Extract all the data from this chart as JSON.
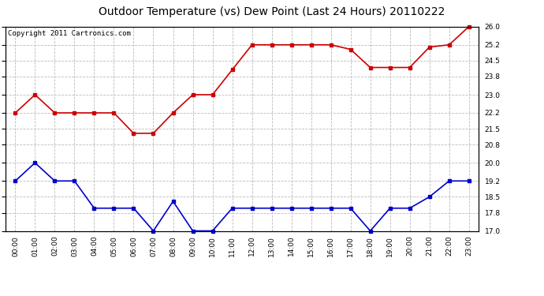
{
  "title": "Outdoor Temperature (vs) Dew Point (Last 24 Hours) 20110222",
  "copyright": "Copyright 2011 Cartronics.com",
  "x_labels": [
    "00:00",
    "01:00",
    "02:00",
    "03:00",
    "04:00",
    "05:00",
    "06:00",
    "07:00",
    "08:00",
    "09:00",
    "10:00",
    "11:00",
    "12:00",
    "13:00",
    "14:00",
    "15:00",
    "16:00",
    "17:00",
    "18:00",
    "19:00",
    "20:00",
    "21:00",
    "22:00",
    "23:00"
  ],
  "temp_data": [
    22.2,
    23.0,
    22.2,
    22.2,
    22.2,
    22.2,
    21.3,
    21.3,
    22.2,
    23.0,
    23.0,
    24.1,
    25.2,
    25.2,
    25.2,
    25.2,
    25.2,
    25.0,
    24.2,
    24.2,
    24.2,
    25.1,
    25.2,
    26.0
  ],
  "dew_data": [
    19.2,
    20.0,
    19.2,
    19.2,
    18.0,
    18.0,
    18.0,
    17.0,
    18.3,
    17.0,
    17.0,
    18.0,
    18.0,
    18.0,
    18.0,
    18.0,
    18.0,
    18.0,
    17.0,
    18.0,
    18.0,
    18.5,
    19.2,
    19.2
  ],
  "temp_color": "#cc0000",
  "dew_color": "#0000cc",
  "background_color": "#ffffff",
  "grid_color": "#bbbbbb",
  "yticks": [
    17.0,
    17.8,
    18.5,
    19.2,
    20.0,
    20.8,
    21.5,
    22.2,
    23.0,
    23.8,
    24.5,
    25.2,
    26.0
  ],
  "ymin": 17.0,
  "ymax": 26.0,
  "title_fontsize": 10,
  "copyright_fontsize": 6.5,
  "tick_fontsize": 6.5,
  "marker": "s",
  "marker_size": 2.5,
  "linewidth": 1.2
}
